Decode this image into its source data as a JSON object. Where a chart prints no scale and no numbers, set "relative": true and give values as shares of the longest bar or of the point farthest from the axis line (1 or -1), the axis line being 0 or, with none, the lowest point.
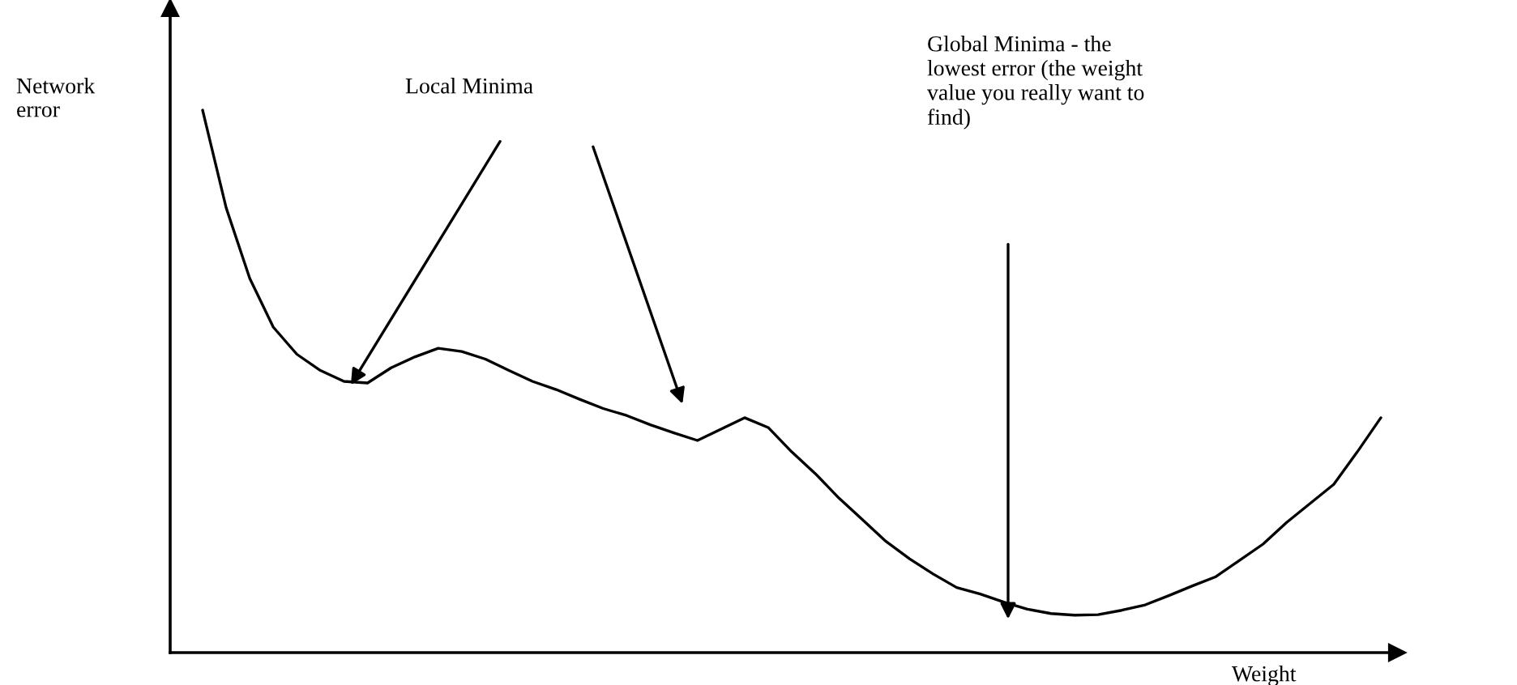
{
  "chart_data": {
    "type": "line",
    "relative": true,
    "xlabel": "Weight",
    "ylabel": "Network\nerror",
    "color": "#000000",
    "categories": [
      null,
      null,
      null,
      null,
      null,
      null,
      null,
      null,
      null,
      null,
      null,
      null,
      null,
      null,
      null,
      null,
      null,
      null,
      null,
      null,
      null,
      null,
      null,
      null,
      null,
      null,
      null,
      null,
      null,
      null,
      null,
      null,
      null,
      null,
      null,
      null,
      null,
      null,
      null,
      null,
      null,
      null,
      null,
      null,
      null,
      null,
      null,
      null,
      null,
      null,
      null
    ],
    "values": [
      1.0,
      0.82,
      0.69,
      0.6,
      0.55,
      0.52,
      0.5,
      0.497,
      0.525,
      0.545,
      0.561,
      0.555,
      0.541,
      0.52,
      0.5,
      0.485,
      0.467,
      0.45,
      0.437,
      0.42,
      0.405,
      0.391,
      0.412,
      0.433,
      0.415,
      0.37,
      0.33,
      0.285,
      0.245,
      0.205,
      0.173,
      0.145,
      0.12,
      0.108,
      0.093,
      0.08,
      0.072,
      0.069,
      0.07,
      0.078,
      0.088,
      0.105,
      0.123,
      0.14,
      0.17,
      0.2,
      0.24,
      0.275,
      0.31,
      0.37,
      0.433
    ],
    "annotations": [
      "Local Minima",
      "Global Minima - the\nlowest error (the weight\nvalue you really want to\nfind)"
    ]
  }
}
